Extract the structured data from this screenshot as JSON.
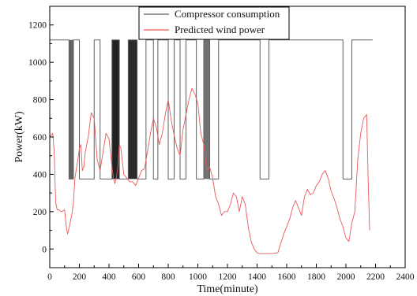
{
  "chart_data": {
    "type": "line",
    "title": "",
    "xlabel": "Time(minute)",
    "ylabel": "Power(kW)",
    "xlim": [
      0,
      2400
    ],
    "ylim": [
      -100,
      1300
    ],
    "xticks": [
      0,
      200,
      400,
      600,
      800,
      1000,
      1200,
      1400,
      1600,
      1800,
      2000,
      2200,
      2400
    ],
    "yticks": [
      0,
      200,
      400,
      600,
      800,
      1000,
      1200
    ],
    "legend_position": "top-center",
    "grid": false,
    "series": [
      {
        "name": "Compressor consumption",
        "color": "#606060",
        "kind": "step",
        "x": [
          0,
          130,
          130,
          160,
          160,
          200,
          200,
          300,
          300,
          340,
          340,
          420,
          420,
          470,
          470,
          530,
          530,
          590,
          590,
          650,
          650,
          700,
          700,
          730,
          730,
          800,
          800,
          840,
          840,
          880,
          880,
          920,
          920,
          990,
          990,
          1040,
          1040,
          1080,
          1080,
          1140,
          1140,
          1200,
          1200,
          1420,
          1420,
          1480,
          1480,
          1980,
          1980,
          2040,
          2040,
          2180
        ],
        "y": [
          1120,
          1120,
          375,
          375,
          1120,
          1120,
          375,
          375,
          1120,
          1120,
          375,
          375,
          1120,
          1120,
          375,
          375,
          1120,
          1120,
          375,
          375,
          1120,
          1120,
          375,
          375,
          1120,
          1120,
          375,
          375,
          1120,
          1120,
          375,
          375,
          1120,
          1120,
          375,
          375,
          1120,
          1120,
          375,
          375,
          1120,
          1120,
          1120,
          1120,
          375,
          375,
          1120,
          1120,
          375,
          375,
          1120,
          1120
        ]
      },
      {
        "name": "Predicted wind power",
        "color": "#e8595a",
        "kind": "line",
        "x": [
          0,
          20,
          30,
          40,
          50,
          60,
          80,
          100,
          110,
          120,
          130,
          140,
          150,
          160,
          170,
          180,
          190,
          200,
          210,
          220,
          230,
          240,
          260,
          280,
          300,
          320,
          340,
          360,
          380,
          400,
          410,
          420,
          430,
          440,
          450,
          460,
          470,
          480,
          500,
          520,
          540,
          560,
          580,
          600,
          620,
          640,
          660,
          680,
          700,
          720,
          740,
          760,
          780,
          800,
          820,
          840,
          860,
          880,
          900,
          920,
          940,
          960,
          980,
          1000,
          1020,
          1040,
          1060,
          1080,
          1100,
          1120,
          1140,
          1160,
          1180,
          1200,
          1220,
          1240,
          1260,
          1280,
          1300,
          1320,
          1340,
          1360,
          1380,
          1400,
          1420,
          1440,
          1460,
          1480,
          1500,
          1540,
          1580,
          1620,
          1640,
          1660,
          1680,
          1700,
          1720,
          1740,
          1760,
          1780,
          1800,
          1820,
          1840,
          1860,
          1880,
          1900,
          1920,
          1940,
          1960,
          1980,
          2000,
          2020,
          2040,
          2060,
          2080,
          2100,
          2120,
          2140,
          2150,
          2160
        ],
        "y": [
          600,
          620,
          520,
          250,
          210,
          210,
          200,
          210,
          130,
          80,
          110,
          150,
          190,
          250,
          380,
          430,
          480,
          540,
          560,
          420,
          440,
          520,
          600,
          730,
          700,
          480,
          420,
          520,
          620,
          590,
          520,
          440,
          380,
          350,
          380,
          440,
          560,
          540,
          400,
          380,
          360,
          360,
          340,
          380,
          420,
          430,
          520,
          620,
          700,
          650,
          560,
          620,
          720,
          800,
          690,
          610,
          540,
          500,
          640,
          720,
          800,
          860,
          830,
          780,
          620,
          560,
          420,
          440,
          380,
          280,
          240,
          180,
          200,
          200,
          240,
          300,
          280,
          200,
          280,
          240,
          120,
          40,
          0,
          -20,
          -25,
          -25,
          -25,
          -25,
          -25,
          -20,
          80,
          160,
          220,
          260,
          220,
          180,
          280,
          320,
          290,
          300,
          340,
          360,
          400,
          420,
          380,
          310,
          270,
          220,
          160,
          120,
          60,
          40,
          140,
          200,
          480,
          620,
          700,
          720,
          380,
          100
        ]
      }
    ],
    "shaded_bands": [
      {
        "x0": 130,
        "x1": 160,
        "shade": "#5a5a5a"
      },
      {
        "x0": 420,
        "x1": 470,
        "shade": "#161616"
      },
      {
        "x0": 530,
        "x1": 590,
        "shade": "#202020"
      },
      {
        "x0": 1040,
        "x1": 1080,
        "shade": "#6a6a6a"
      }
    ]
  }
}
